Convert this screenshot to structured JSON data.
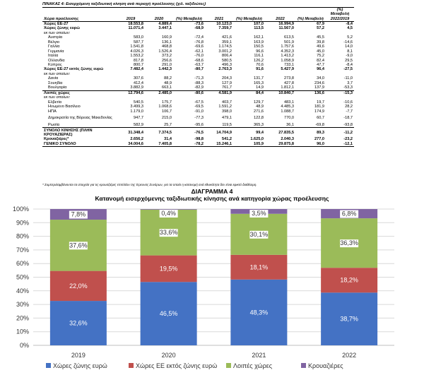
{
  "table": {
    "caption": "ΠΙΝΑΚΑΣ 4: Εισερχόμενη ταξιδιωτική κίνηση ανά περιοχή προέλευσης (χιλ. ταξιδιώτες)",
    "headers": [
      "Χώρα προέλευσης",
      "2019",
      "2020",
      "(%) Μεταβολή",
      "2021",
      "(%) Μεταβολή",
      "2022",
      "(%) Μεταβολή",
      "(%) Μεταβολή 2022/2019"
    ],
    "rows": [
      {
        "cells": [
          "Χώρες ΕΕ-27",
          "18.553,8",
          "4.889,4",
          "-73,6",
          "10.123,0",
          "107,0",
          "16.994,9",
          "67,9",
          "-8,4"
        ],
        "style": "bold"
      },
      {
        "cells": [
          "Χώρες ζώνης ευρώ",
          "11.071,4",
          "3.447,1",
          "-68,9",
          "7.359,7",
          "113,5",
          "11.567,0",
          "57,2",
          "4,5"
        ],
        "style": "bold"
      },
      {
        "cells": [
          "εκ των οποίων:",
          "",
          "",
          "",
          "",
          "",
          "",
          "",
          ""
        ],
        "style": "italic"
      },
      {
        "cells": [
          "Αυστρία",
          "583,0",
          "160,9",
          "-72,4",
          "421,6",
          "162,1",
          "613,5",
          "45,5",
          "5,2"
        ],
        "style": "indent"
      },
      {
        "cells": [
          "Βέλγιο",
          "587,7",
          "136,1",
          "-76,8",
          "359,1",
          "163,9",
          "501,9",
          "39,8",
          "-14,6"
        ],
        "style": "indent"
      },
      {
        "cells": [
          "Γαλλία",
          "1.541,8",
          "468,8",
          "-69,6",
          "1.174,5",
          "150,5",
          "1.757,6",
          "49,6",
          "14,0"
        ],
        "style": "indent"
      },
      {
        "cells": [
          "Γερμανία",
          "4.026,3",
          "1.526,4",
          "-62,1",
          "3.001,2",
          "96,6",
          "4.352,3",
          "45,0",
          "8,1"
        ],
        "style": "indent"
      },
      {
        "cells": [
          "Ιταλία",
          "1.553,2",
          "373,2",
          "-76,0",
          "806,4",
          "116,1",
          "1.413,2",
          "75,2",
          "-9,0"
        ],
        "style": "indent"
      },
      {
        "cells": [
          "Ολλανδία",
          "817,8",
          "256,6",
          "-68,6",
          "580,5",
          "126,2",
          "1.058,9",
          "82,4",
          "29,5"
        ],
        "style": "indent"
      },
      {
        "cells": [
          "Κύπρος",
          "800,7",
          "291,0",
          "-63,7",
          "496,3",
          "70,6",
          "733,1",
          "47,7",
          "-8,4"
        ],
        "style": "indent"
      },
      {
        "cells": [
          "Χώρες ΕΕ-27 εκτός ζώνης ευρώ",
          "7.482,4",
          "1.442,3",
          "-80,7",
          "2.763,3",
          "91,6",
          "5.427,9",
          "96,4",
          "-27,5"
        ],
        "style": "bold"
      },
      {
        "cells": [
          "εκ των οποίων:",
          "",
          "",
          "",
          "",
          "",
          "",
          "",
          ""
        ],
        "style": "italic"
      },
      {
        "cells": [
          "Δανία",
          "307,6",
          "88,2",
          "-71,3",
          "204,3",
          "131,7",
          "273,8",
          "34,0",
          "-11,0"
        ],
        "style": "indent"
      },
      {
        "cells": [
          "Σουηδία",
          "412,4",
          "48,9",
          "-88,3",
          "127,9",
          "165,3",
          "427,8",
          "234,6",
          "3,7"
        ],
        "style": "indent"
      },
      {
        "cells": [
          "Βουλγαρία",
          "3.882,9",
          "663,1",
          "-82,9",
          "761,7",
          "14,9",
          "1.812,1",
          "137,9",
          "-53,3"
        ],
        "style": "indent"
      },
      {
        "cells": [
          "Λοιπές χώρες",
          "12.794,6",
          "2.485,0",
          "-80,6",
          "4.581,9",
          "84,4",
          "10.840,7",
          "136,6",
          "-15,3"
        ],
        "style": "bold line"
      },
      {
        "cells": [
          "εκ των οποίων:",
          "",
          "",
          "",
          "",
          "",
          "",
          "",
          ""
        ],
        "style": "italic"
      },
      {
        "cells": [
          "Ελβετία",
          "540,5",
          "175,7",
          "-67,5",
          "403,7",
          "129,7",
          "483,1",
          "19,7",
          "-10,6"
        ],
        "style": "indent"
      },
      {
        "cells": [
          "Ηνωμένο Βασίλειο",
          "3.499,3",
          "1.068,6",
          "-69,5",
          "1.591,2",
          "48,9",
          "4.485,3",
          "181,9",
          "28,2"
        ],
        "style": "indent"
      },
      {
        "cells": [
          "ΗΠΑ",
          "1.179,0",
          "106,7",
          "-91,0",
          "398,0",
          "271,6",
          "1.088,7",
          "174,9",
          "-7,7"
        ],
        "style": "indent"
      },
      {
        "cells": [
          "Δημοκρατία της Βόρειας Μακεδονίας",
          "947,7",
          "215,0",
          "-77,3",
          "479,1",
          "122,8",
          "770,0",
          "60,7",
          "-18,7"
        ],
        "style": "indent tall"
      },
      {
        "cells": [
          "Ρωσία",
          "582,9",
          "25,7",
          "-95,6",
          "119,5",
          "365,3",
          "36,1",
          "-69,8",
          "-93,8"
        ],
        "style": "indent"
      },
      {
        "cells": [
          "ΣΥΝΟΛΟ ΚΙΝΗΣΗΣ (ΠΛΗΝ ΚΡΟΥΑΖΙΕΡΑΣ)",
          "31.348,4",
          "7.374,5",
          "-76,5",
          "14.704,9",
          "99,4",
          "27.835,5",
          "89,3",
          "-11,2"
        ],
        "style": "bold line tall"
      },
      {
        "cells": [
          "Κρουαζιέρες*",
          "2.656,2",
          "31,4",
          "-98,8",
          "541,2",
          "1.625,0",
          "2.040,3",
          "277,0",
          "-23,2"
        ],
        "style": "bold"
      },
      {
        "cells": [
          "ΓΕΝΙΚΟ ΣΥΝΟΛΟ",
          "34.004,6",
          "7.405,8",
          "-78,2",
          "15.246,1",
          "105,9",
          "29.875,8",
          "96,0",
          "-12,1"
        ],
        "style": "bold linebottom"
      }
    ],
    "note": "* Συμπεριλαμβάνονται τα στοιχεία για τις κρουαζιέρες επιπλέον της Έρευνας Συνόρων, για τα οποία η κατανομή ανά εθνικότητα δεν είναι εφικτό διαθέσιμη."
  },
  "chart": {
    "title": "ΔΙΑΓΡΑΜΜΑ 4",
    "subtitle": "Κατανομή εισερχόμενης ταξιδιωτικής κίνησης ανά κατηγορία χώρας προέλευσης"
  },
  "chart_data": {
    "type": "bar",
    "stacked": true,
    "percent": true,
    "categories": [
      "2019",
      "2020",
      "2021",
      "2022"
    ],
    "yticks": [
      "0%",
      "10%",
      "20%",
      "30%",
      "40%",
      "50%",
      "60%",
      "70%",
      "80%",
      "90%",
      "100%"
    ],
    "ylim": [
      0,
      100
    ],
    "grid": true,
    "legend_position": "bottom",
    "series": [
      {
        "name": "Χώρες ζώνης ευρώ",
        "color": "#4472C4",
        "values": [
          32.6,
          46.5,
          48.3,
          38.7
        ],
        "labels": [
          "32,6%",
          "46,5%",
          "48,3%",
          "38,7%"
        ],
        "label_color": "#ffffff"
      },
      {
        "name": "Χώρες ΕΕ εκτός ζώνης ευρώ",
        "color": "#C0504D",
        "values": [
          22.0,
          19.5,
          18.1,
          18.2
        ],
        "labels": [
          "22,0%",
          "19,5%",
          "18,1%",
          "18,2%"
        ],
        "label_color": "#ffffff"
      },
      {
        "name": "Λοιπές χώρες",
        "color": "#9BBB59",
        "values": [
          37.6,
          33.6,
          30.1,
          36.3
        ],
        "labels": [
          "37,6%",
          "33,6%",
          "30,1%",
          "36,3%"
        ],
        "label_color": "#333333"
      },
      {
        "name": "Κρουαζιέρες",
        "color": "#8064A2",
        "values": [
          7.8,
          0.4,
          3.5,
          6.8
        ],
        "labels": [
          "7,8%",
          "0,4%",
          "3,5%",
          "6,8%"
        ],
        "label_color": "#333333"
      }
    ]
  }
}
